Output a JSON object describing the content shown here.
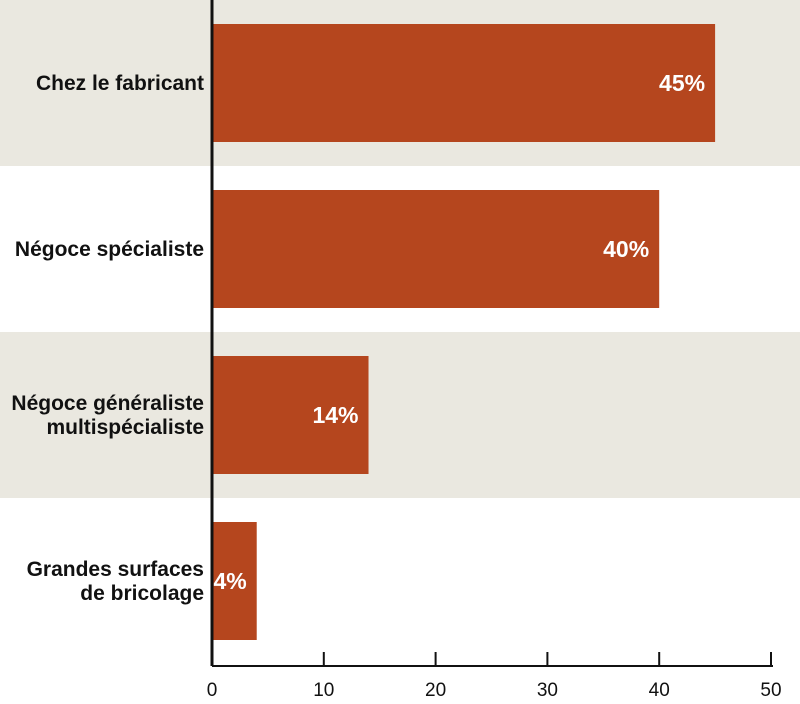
{
  "chart_data": {
    "type": "bar",
    "orientation": "horizontal",
    "categories": [
      [
        "Chez le fabricant"
      ],
      [
        "Négoce spécialiste"
      ],
      [
        "Négoce généraliste",
        "multispécialiste"
      ],
      [
        "Grandes surfaces",
        "de bricolage"
      ]
    ],
    "values": [
      45,
      40,
      14,
      4
    ],
    "data_labels": [
      "45%",
      "40%",
      "14%",
      "4%"
    ],
    "xlim": [
      0,
      50
    ],
    "x_ticks": [
      0,
      10,
      20,
      30,
      40,
      50
    ],
    "x_tick_labels": [
      "0",
      "10",
      "20",
      "30",
      "40",
      "50"
    ],
    "title": "",
    "xlabel": "",
    "ylabel": "",
    "grid": false,
    "bar_color": "#b5461e",
    "band_colors": [
      "#eae8e0",
      "#ffffff"
    ]
  }
}
